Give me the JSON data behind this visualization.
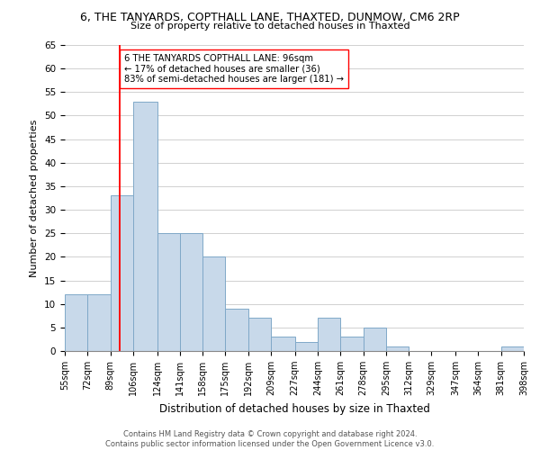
{
  "title": "6, THE TANYARDS, COPTHALL LANE, THAXTED, DUNMOW, CM6 2RP",
  "subtitle": "Size of property relative to detached houses in Thaxted",
  "xlabel": "Distribution of detached houses by size in Thaxted",
  "ylabel": "Number of detached properties",
  "bar_color": "#c8d9ea",
  "bar_edge_color": "#7fa8c8",
  "background_color": "#ffffff",
  "grid_color": "#d0d0d0",
  "vline_x": 96,
  "vline_color": "red",
  "bin_edges": [
    55,
    72,
    89,
    106,
    124,
    141,
    158,
    175,
    192,
    209,
    227,
    244,
    261,
    278,
    295,
    312,
    329,
    347,
    364,
    381,
    398
  ],
  "bin_labels": [
    "55sqm",
    "72sqm",
    "89sqm",
    "106sqm",
    "124sqm",
    "141sqm",
    "158sqm",
    "175sqm",
    "192sqm",
    "209sqm",
    "227sqm",
    "244sqm",
    "261sqm",
    "278sqm",
    "295sqm",
    "312sqm",
    "329sqm",
    "347sqm",
    "364sqm",
    "381sqm",
    "398sqm"
  ],
  "counts": [
    12,
    12,
    33,
    53,
    25,
    25,
    20,
    9,
    7,
    3,
    2,
    7,
    3,
    5,
    1,
    0,
    0,
    0,
    0,
    1
  ],
  "ylim": [
    0,
    65
  ],
  "yticks": [
    0,
    5,
    10,
    15,
    20,
    25,
    30,
    35,
    40,
    45,
    50,
    55,
    60,
    65
  ],
  "annotation_lines": [
    "6 THE TANYARDS COPTHALL LANE: 96sqm",
    "← 17% of detached houses are smaller (36)",
    "83% of semi-detached houses are larger (181) →"
  ],
  "footer_line1": "Contains HM Land Registry data © Crown copyright and database right 2024.",
  "footer_line2": "Contains public sector information licensed under the Open Government Licence v3.0."
}
